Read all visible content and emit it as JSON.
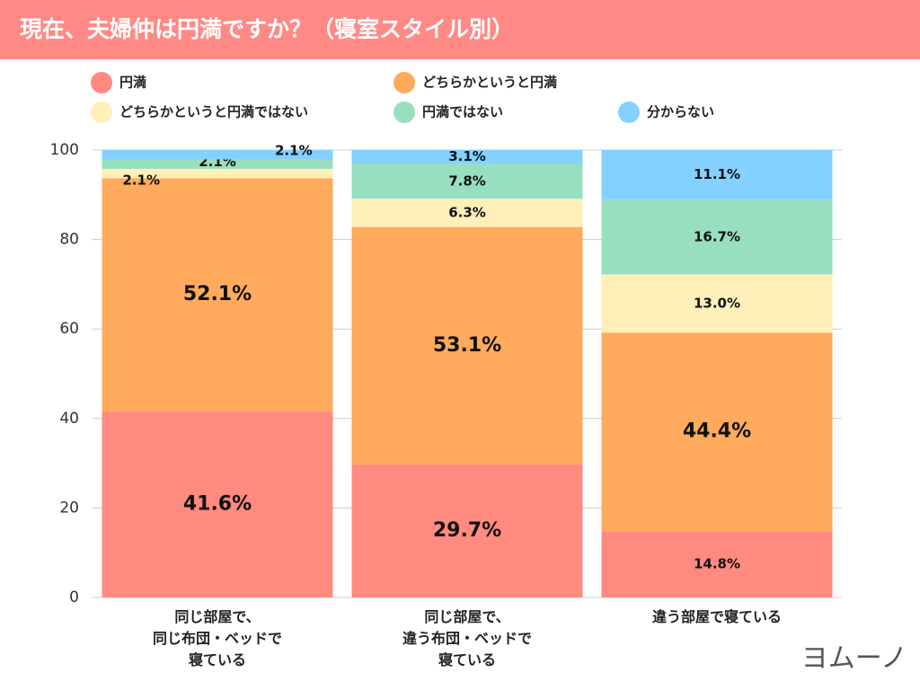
{
  "chart_data": {
    "type": "stacked_bar",
    "title": "現在、夫婦仲は円満ですか？（寝室スタイル別）",
    "categories": [
      "同じ部屋で、\n同じ布団・ベッドで\n寝ている",
      "同じ部屋で、\n違う布団・ベッドで\n寝ている",
      "違う部屋で寝ている"
    ],
    "series": [
      {
        "name": "円満",
        "color": "#ff8a80",
        "values": [
          41.6,
          29.7,
          14.8
        ],
        "value_labels": [
          "41.6%",
          "29.7%",
          "14.8%"
        ]
      },
      {
        "name": "どちらかというと円満",
        "color": "#ffaa5c",
        "values": [
          52.1,
          53.1,
          44.4
        ],
        "value_labels": [
          "52.1%",
          "53.1%",
          "44.4%"
        ]
      },
      {
        "name": "どちらかというと円満ではない",
        "color": "#ffefb8",
        "values": [
          2.1,
          6.3,
          13.0
        ],
        "value_labels": [
          "2.1%",
          "6.3%",
          "13.0%"
        ]
      },
      {
        "name": "円満ではない",
        "color": "#98dfc0",
        "values": [
          2.1,
          7.8,
          16.7
        ],
        "value_labels": [
          "2.1%",
          "7.8%",
          "16.7%"
        ]
      },
      {
        "name": "分からない",
        "color": "#84d1ff",
        "values": [
          2.1,
          3.1,
          11.1
        ],
        "value_labels": [
          "2.1%",
          "3.1%",
          "11.1%"
        ]
      }
    ],
    "ylim": [
      0,
      100
    ],
    "yticks": [
      0,
      20,
      40,
      60,
      80,
      100
    ],
    "grid": true,
    "logo": "ヨムーノ"
  }
}
